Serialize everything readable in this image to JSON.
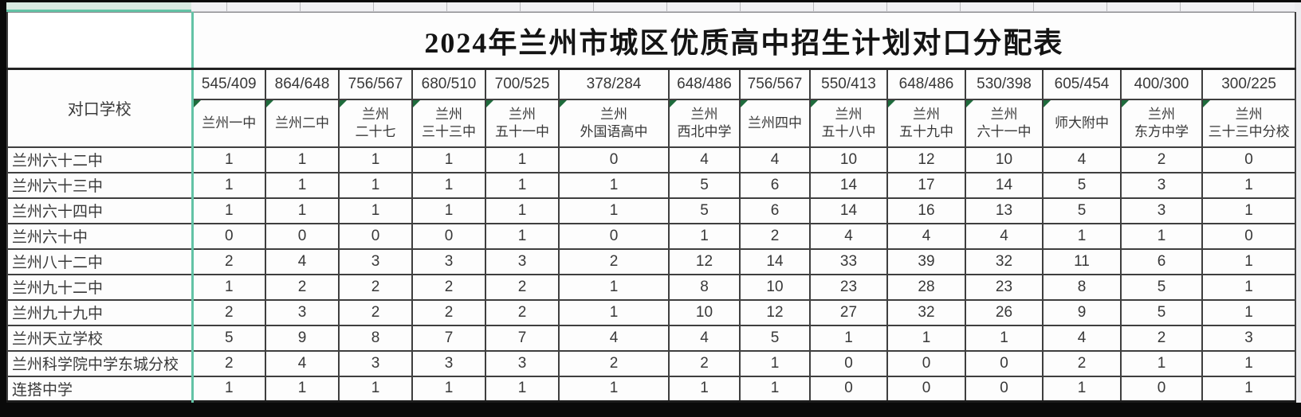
{
  "title": "2024年兰州市城区优质高中招生计划对口分配表",
  "corner_label": "对口学校",
  "colors": {
    "selection_teal": "#63c3a6",
    "comment_marker_green": "#1e6b3c",
    "grid_line": "#3f3f3f"
  },
  "table": {
    "schools": [
      {
        "score": "545/409",
        "name": "兰州一中"
      },
      {
        "score": "864/648",
        "name": "兰州二中"
      },
      {
        "score": "756/567",
        "name": "兰州\n二十七"
      },
      {
        "score": "680/510",
        "name": "兰州\n三十三中"
      },
      {
        "score": "700/525",
        "name": "兰州\n五十一中"
      },
      {
        "score": "378/284",
        "name": "兰州\n外国语高中"
      },
      {
        "score": "648/486",
        "name": "兰州\n西北中学"
      },
      {
        "score": "756/567",
        "name": "兰州四中"
      },
      {
        "score": "550/413",
        "name": "兰州\n五十八中"
      },
      {
        "score": "648/486",
        "name": "兰州\n五十九中"
      },
      {
        "score": "530/398",
        "name": "兰州\n六十一中"
      },
      {
        "score": "605/454",
        "name": "师大附中"
      },
      {
        "score": "400/300",
        "name": "兰州\n东方中学"
      },
      {
        "score": "300/225",
        "name": "兰州\n三十三中分校"
      }
    ],
    "rows": [
      {
        "label": "兰州六十二中",
        "values": [
          1,
          1,
          1,
          1,
          1,
          0,
          4,
          4,
          10,
          12,
          10,
          4,
          2,
          0
        ]
      },
      {
        "label": "兰州六十三中",
        "values": [
          1,
          1,
          1,
          1,
          1,
          1,
          5,
          6,
          14,
          17,
          14,
          5,
          3,
          1
        ]
      },
      {
        "label": "兰州六十四中",
        "values": [
          1,
          1,
          1,
          1,
          1,
          1,
          5,
          6,
          14,
          16,
          13,
          5,
          3,
          1
        ]
      },
      {
        "label": "兰州六十中",
        "values": [
          0,
          0,
          0,
          0,
          1,
          0,
          1,
          2,
          4,
          4,
          4,
          1,
          1,
          0
        ]
      },
      {
        "label": "兰州八十二中",
        "values": [
          2,
          4,
          3,
          3,
          3,
          2,
          12,
          14,
          33,
          39,
          32,
          11,
          6,
          1
        ]
      },
      {
        "label": "兰州九十二中",
        "values": [
          1,
          2,
          2,
          2,
          2,
          1,
          8,
          10,
          23,
          28,
          23,
          8,
          5,
          1
        ]
      },
      {
        "label": "兰州九十九中",
        "values": [
          2,
          3,
          2,
          2,
          2,
          1,
          10,
          12,
          27,
          32,
          26,
          9,
          5,
          1
        ]
      },
      {
        "label": "兰州天立学校",
        "values": [
          5,
          9,
          8,
          7,
          7,
          4,
          4,
          5,
          1,
          1,
          1,
          4,
          2,
          3
        ]
      },
      {
        "label": "兰州科学院中学东城分校",
        "values": [
          2,
          4,
          3,
          3,
          3,
          2,
          2,
          1,
          0,
          0,
          0,
          2,
          1,
          1
        ]
      },
      {
        "label": "连搭中学",
        "values": [
          1,
          1,
          1,
          1,
          1,
          1,
          1,
          1,
          0,
          0,
          0,
          1,
          0,
          1
        ]
      }
    ]
  }
}
